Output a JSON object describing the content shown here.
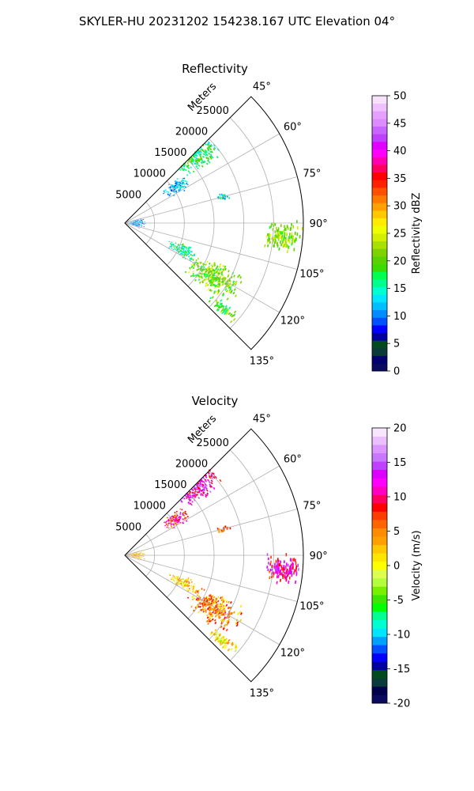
{
  "figure": {
    "suptitle": "SKYLER-HU  20231202  154238.167 UTC Elevation 04°"
  },
  "chart_data": [
    {
      "type": "heatmap",
      "title": "Reflectivity",
      "radial_label": "Meters",
      "radial_ticks": [
        5000,
        10000,
        15000,
        20000,
        25000
      ],
      "radial_range": [
        0,
        30000
      ],
      "angular_ticks": [
        "45°",
        "60°",
        "75°",
        "90°",
        "105°",
        "120°",
        "135°"
      ],
      "angular_range_deg": [
        45,
        135
      ],
      "grid": true,
      "colorbar": {
        "label": "Reflectivity dBZ",
        "range": [
          0,
          50
        ],
        "ticks": [
          0,
          5,
          10,
          15,
          20,
          25,
          30,
          35,
          40,
          45,
          50
        ],
        "colors": [
          "#0a0a60",
          "#00006e",
          "#0a3a3a",
          "#004b1e",
          "#0000a0",
          "#0000ff",
          "#0050ff",
          "#008cff",
          "#00bfff",
          "#00e6ff",
          "#00ffd0",
          "#00ff90",
          "#00ff50",
          "#3cdc00",
          "#5ad200",
          "#7ed200",
          "#a8e000",
          "#d2f000",
          "#f0ff00",
          "#ffec00",
          "#ffc800",
          "#ffa000",
          "#ff7800",
          "#ff5000",
          "#ff2000",
          "#ff0000",
          "#ff0060",
          "#ff00b0",
          "#ff00ff",
          "#e000ff",
          "#c040ff",
          "#c864ff",
          "#dc8cff",
          "#e6a0ff",
          "#f0c0ff",
          "#f8e0ff"
        ]
      },
      "echoes": [
        {
          "az_deg": 45,
          "az_span_deg": 20,
          "range_m": [
            12500,
            21000
          ],
          "value": 17
        },
        {
          "az_deg": 55,
          "az_span_deg": 14,
          "range_m": [
            8000,
            13000
          ],
          "value": 12
        },
        {
          "az_deg": 95,
          "az_span_deg": 11,
          "range_m": [
            23500,
            30000
          ],
          "value": 22
        },
        {
          "az_deg": 121,
          "az_span_deg": 17,
          "range_m": [
            12500,
            22500
          ],
          "value": 21
        },
        {
          "az_deg": 115,
          "az_span_deg": 12,
          "range_m": [
            8000,
            13500
          ],
          "value": 16
        },
        {
          "az_deg": 90,
          "az_span_deg": 40,
          "range_m": [
            200,
            3500
          ],
          "value": 11
        },
        {
          "az_deg": 131,
          "az_span_deg": 5,
          "range_m": [
            19000,
            25000
          ],
          "value": 20
        },
        {
          "az_deg": 75,
          "az_span_deg": 4,
          "range_m": [
            15500,
            18500
          ],
          "value": 14
        }
      ]
    },
    {
      "type": "heatmap",
      "title": "Velocity",
      "radial_label": "Meters",
      "radial_ticks": [
        5000,
        10000,
        15000,
        20000,
        25000
      ],
      "radial_range": [
        0,
        30000
      ],
      "angular_ticks": [
        "45°",
        "60°",
        "75°",
        "90°",
        "105°",
        "120°",
        "135°"
      ],
      "angular_range_deg": [
        45,
        135
      ],
      "grid": true,
      "colorbar": {
        "label": "Velocity (m/s)",
        "range": [
          -20,
          20
        ],
        "ticks": [
          -20,
          -15,
          -10,
          -5,
          0,
          5,
          10,
          15,
          20
        ],
        "colors": [
          "#0a0a60",
          "#00004b",
          "#0a3a3a",
          "#004b1e",
          "#0000a0",
          "#0000ff",
          "#0050ff",
          "#00a0ff",
          "#00e6ff",
          "#00ffd0",
          "#00ff90",
          "#00ff00",
          "#3ce600",
          "#78f000",
          "#b4ff3c",
          "#dcff50",
          "#ffff00",
          "#ffe600",
          "#ffc800",
          "#ffa000",
          "#ff8c00",
          "#ff6400",
          "#ff3c00",
          "#ff0000",
          "#ff0060",
          "#ff00c0",
          "#ff00ff",
          "#dc00ff",
          "#c040ff",
          "#c878ff",
          "#dc96ff",
          "#ebc0ff",
          "#f8e6ff"
        ]
      },
      "echoes": [
        {
          "az_deg": 45,
          "az_span_deg": 20,
          "range_m": [
            12500,
            21000
          ],
          "value": 12
        },
        {
          "az_deg": 55,
          "az_span_deg": 14,
          "range_m": [
            8000,
            13000
          ],
          "value": 9
        },
        {
          "az_deg": 95,
          "az_span_deg": 11,
          "range_m": [
            23500,
            30000
          ],
          "value": 11
        },
        {
          "az_deg": 121,
          "az_span_deg": 17,
          "range_m": [
            12500,
            22500
          ],
          "value": 5
        },
        {
          "az_deg": 115,
          "az_span_deg": 12,
          "range_m": [
            8000,
            13500
          ],
          "value": 2
        },
        {
          "az_deg": 90,
          "az_span_deg": 40,
          "range_m": [
            200,
            3500
          ],
          "value": 3
        },
        {
          "az_deg": 131,
          "az_span_deg": 5,
          "range_m": [
            19000,
            25000
          ],
          "value": 1
        },
        {
          "az_deg": 75,
          "az_span_deg": 4,
          "range_m": [
            15500,
            18500
          ],
          "value": 6
        }
      ]
    }
  ]
}
